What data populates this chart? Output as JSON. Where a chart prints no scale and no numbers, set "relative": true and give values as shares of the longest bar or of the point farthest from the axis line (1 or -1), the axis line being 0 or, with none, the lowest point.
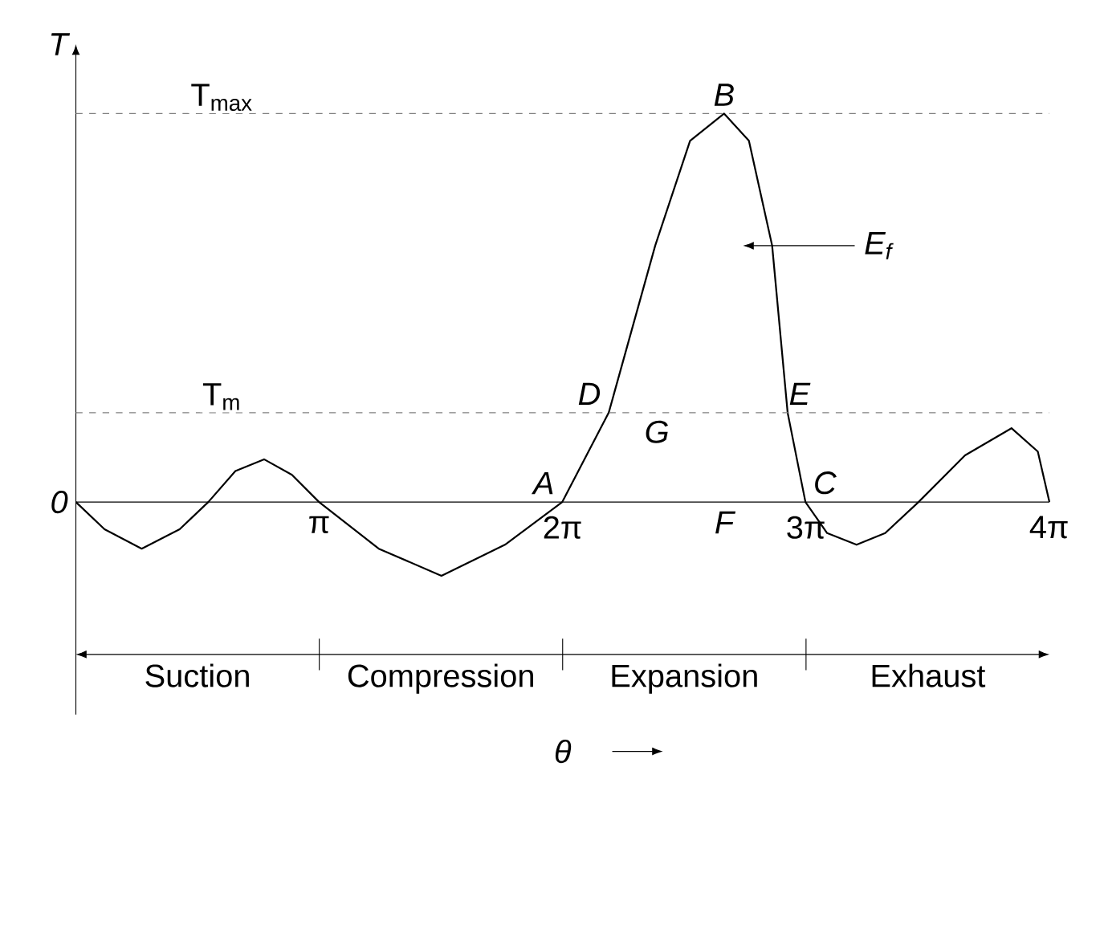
{
  "chart_data": {
    "type": "line",
    "relative": true,
    "ylabel": "T",
    "x": [
      0,
      0.37,
      0.85,
      1.34,
      1.71,
      2.06,
      2.43,
      2.79,
      3.14,
      3.91,
      4.72,
      5.54,
      6.28,
      6.88,
      7.48,
      7.93,
      8.37,
      8.69,
      8.99,
      9.19,
      9.42,
      9.7,
      10.08,
      10.45,
      10.88,
      11.48,
      12.08,
      12.42,
      12.57
    ],
    "values": [
      0,
      -0.07,
      -0.12,
      -0.07,
      0,
      0.08,
      0.11,
      0.07,
      0,
      -0.12,
      -0.19,
      -0.11,
      0,
      0.23,
      0.66,
      0.93,
      1,
      0.93,
      0.66,
      0.23,
      0,
      -0.08,
      -0.11,
      -0.08,
      0,
      0.12,
      0.19,
      0.13,
      0
    ],
    "color": "#000000",
    "marker": "none",
    "line_style": "solid",
    "grid": false,
    "xlim": [
      0,
      12.57
    ],
    "xticks": [
      {
        "value": 3.1416,
        "label": "π"
      },
      {
        "value": 6.2832,
        "label": "2π"
      },
      {
        "value": 9.4248,
        "label": "3π"
      },
      {
        "value": 12.566,
        "label": "4π"
      }
    ],
    "ref_lines": [
      {
        "axis": "y",
        "value": 1,
        "label": "T$_{max}$",
        "line_style": "dashed"
      },
      {
        "axis": "y",
        "value": 0.23,
        "label": "T$_{m}$",
        "line_style": "dashed"
      }
    ],
    "annotations": [
      {
        "text": "0",
        "x": 0,
        "y": 0
      },
      {
        "text": "A",
        "x": 6.28,
        "y": 0
      },
      {
        "text": "B",
        "x": 8.37,
        "y": 1
      },
      {
        "text": "C",
        "x": 9.42,
        "y": 0
      },
      {
        "text": "D",
        "x": 6.88,
        "y": 0.23
      },
      {
        "text": "E",
        "x": 8.99,
        "y": 0.23
      },
      {
        "text": "G",
        "x": 7.24,
        "y": 0.23
      },
      "Suction",
      "Compression",
      "Expansion",
      "Exhaust",
      "F",
      "E$_{f}$",
      "θ"
    ]
  }
}
